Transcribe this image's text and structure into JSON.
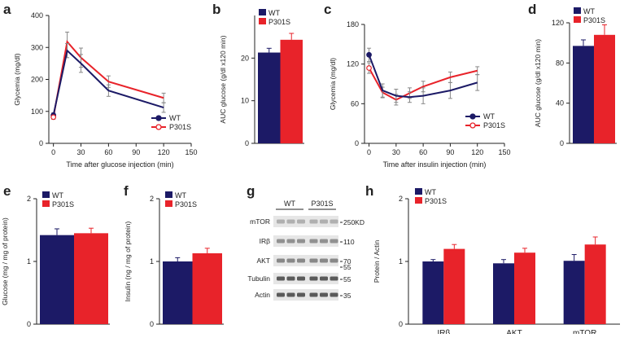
{
  "colors": {
    "wt": "#1c1a66",
    "p301s": "#e8232a",
    "axis": "#222222",
    "err": "#888888",
    "blot_bg": "#e6e6e6",
    "band": "#4a4a4a"
  },
  "panel_letters": {
    "a": "a",
    "b": "b",
    "c": "c",
    "d": "d",
    "e": "e",
    "f": "f",
    "g": "g",
    "h": "h"
  },
  "chart_data": [
    {
      "id": "a",
      "type": "line",
      "xlabel": "Time after glucose injection (min)",
      "ylabel": "Glycemia (mg/dl)",
      "xlim": [
        -5,
        150
      ],
      "ylim": [
        0,
        400
      ],
      "xticks": [
        0,
        30,
        60,
        90,
        120,
        150
      ],
      "yticks": [
        0,
        100,
        200,
        300,
        400
      ],
      "x": [
        0,
        15,
        30,
        60,
        120
      ],
      "series": [
        {
          "name": "WT",
          "values": [
            88,
            290,
            250,
            165,
            112
          ],
          "errors": [
            8,
            22,
            28,
            18,
            15
          ]
        },
        {
          "name": "P301S",
          "values": [
            82,
            318,
            268,
            193,
            142
          ],
          "errors": [
            7,
            30,
            30,
            18,
            15
          ]
        }
      ],
      "legend": [
        "WT",
        "P301S"
      ]
    },
    {
      "id": "b",
      "type": "bar",
      "ylabel": "AUC glucose (g/dl x120 min)",
      "ylim": [
        0,
        30
      ],
      "yticks": [
        0,
        10,
        20
      ],
      "series": [
        {
          "name": "WT",
          "value": 21.3,
          "error": 1.0
        },
        {
          "name": "P301S",
          "value": 24.3,
          "error": 1.5
        }
      ],
      "legend": [
        "WT",
        "P301S"
      ]
    },
    {
      "id": "c",
      "type": "line",
      "xlabel": "Time after insulin injection (min)",
      "ylabel": "Glycemia (mg/dl)",
      "xlim": [
        -5,
        150
      ],
      "ylim": [
        0,
        180
      ],
      "xticks": [
        0,
        30,
        60,
        90,
        120,
        150
      ],
      "yticks": [
        0,
        60,
        120,
        180
      ],
      "x": [
        0,
        15,
        30,
        45,
        60,
        90,
        120
      ],
      "series": [
        {
          "name": "WT",
          "values": [
            134,
            80,
            72,
            70,
            72,
            80,
            92
          ],
          "errors": [
            10,
            10,
            10,
            8,
            12,
            12,
            12
          ]
        },
        {
          "name": "P301S",
          "values": [
            114,
            77,
            66,
            76,
            86,
            100,
            110
          ],
          "errors": [
            8,
            8,
            8,
            8,
            8,
            8,
            6
          ]
        }
      ],
      "legend": [
        "WT",
        "P301S"
      ]
    },
    {
      "id": "d",
      "type": "bar",
      "ylabel": "AUC glucose (g/dl x120 min)",
      "ylim": [
        0,
        120
      ],
      "yticks": [
        0,
        40,
        80,
        120
      ],
      "series": [
        {
          "name": "WT",
          "value": 97,
          "error": 6
        },
        {
          "name": "P301S",
          "value": 108,
          "error": 10
        }
      ],
      "legend": [
        "WT",
        "P301S"
      ]
    },
    {
      "id": "e",
      "type": "bar",
      "ylabel": "Glucose (mg / mg of protein)",
      "ylim": [
        0,
        2
      ],
      "yticks": [
        0,
        1,
        2
      ],
      "series": [
        {
          "name": "WT",
          "value": 1.42,
          "error": 0.1
        },
        {
          "name": "P301S",
          "value": 1.45,
          "error": 0.08
        }
      ],
      "legend": [
        "WT",
        "P301S"
      ]
    },
    {
      "id": "f",
      "type": "bar",
      "ylabel": "Insulin (ng / mg of protein)",
      "ylim": [
        0,
        2
      ],
      "yticks": [
        0,
        1,
        2
      ],
      "series": [
        {
          "name": "WT",
          "value": 1.0,
          "error": 0.06
        },
        {
          "name": "P301S",
          "value": 1.13,
          "error": 0.08
        }
      ],
      "legend": [
        "WT",
        "P301S"
      ]
    },
    {
      "id": "h",
      "type": "bar",
      "ylabel": "Protein / Actin",
      "ylim": [
        0,
        2
      ],
      "yticks": [
        0,
        1,
        2
      ],
      "categories": [
        "IRβ",
        "AKT",
        "mTOR"
      ],
      "series": [
        {
          "name": "WT",
          "values": [
            1.0,
            0.97,
            1.01
          ],
          "errors": [
            0.03,
            0.06,
            0.1
          ]
        },
        {
          "name": "P301S",
          "values": [
            1.2,
            1.14,
            1.27
          ],
          "errors": [
            0.07,
            0.07,
            0.12
          ]
        }
      ],
      "legend": [
        "WT",
        "P301S"
      ]
    }
  ],
  "blot": {
    "groups": [
      "WT",
      "P301S"
    ],
    "rows": [
      {
        "label": "mTOR",
        "marker": "250KD",
        "intensity": 0.35
      },
      {
        "label": "IRβ",
        "marker": "110",
        "intensity": 0.55
      },
      {
        "label": "AKT",
        "marker": "70",
        "intensity": 0.6
      },
      {
        "label": "Tubulin",
        "marker": "55",
        "intensity": 0.9
      },
      {
        "label": "Actin",
        "marker": "35",
        "intensity": 0.9
      }
    ],
    "extra_markers": [
      "55"
    ]
  }
}
